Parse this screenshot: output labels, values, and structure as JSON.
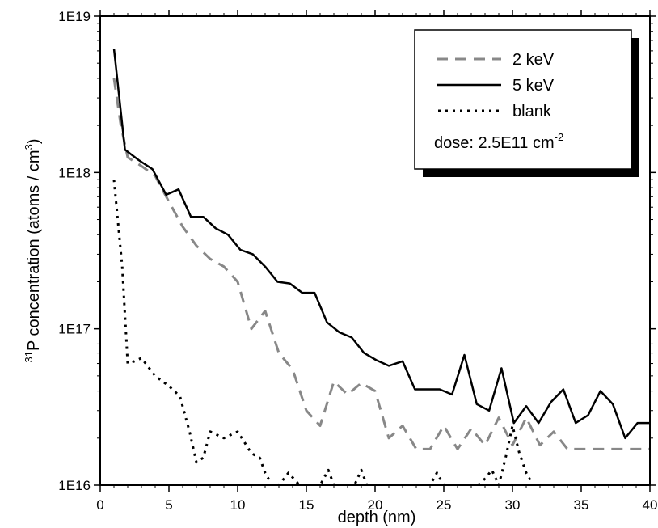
{
  "chart_data": {
    "type": "line",
    "xlabel": "depth (nm)",
    "ylabel": {
      "sup_prefix": "31",
      "main": "P concentration (atoms / cm",
      "sup_unit": "3",
      "close": ")"
    },
    "xlim": [
      0,
      40
    ],
    "ylim": [
      1e+16,
      1e+19
    ],
    "y_scale": "log",
    "x_ticks": [
      0,
      5,
      10,
      15,
      20,
      25,
      30,
      35,
      40
    ],
    "x_tick_labels": [
      "0",
      "5",
      "10",
      "15",
      "20",
      "25",
      "30",
      "35",
      "40"
    ],
    "y_ticks": [
      1e+16,
      1e+17,
      1e+18,
      1e+19
    ],
    "y_tick_labels": [
      "1E16",
      "1E17",
      "1E18",
      "1E19"
    ],
    "legend": {
      "position": "top-right",
      "dose_text": "dose: 2.5E11 cm",
      "dose_sup": "-2"
    },
    "series": [
      {
        "name": "2 keV",
        "style": "dashed",
        "color": "#888888",
        "x": [
          1.0,
          1.5,
          2.0,
          3.0,
          4.0,
          5.0,
          6.0,
          7.0,
          8.0,
          9.0,
          10.0,
          11.0,
          12.0,
          13.0,
          14.0,
          15.0,
          16.0,
          17.0,
          18.0,
          19.0,
          20.0,
          21.0,
          22.0,
          23.0,
          24.0,
          25.0,
          26.0,
          27.0,
          28.0,
          29.0,
          30.0,
          31.0,
          32.0,
          33.0,
          34.0,
          35.0,
          36.0,
          37.0,
          38.0,
          39.0,
          40.0
        ],
        "y": [
          4e+18,
          2e+18,
          1.25e+18,
          1.1e+18,
          9.5e+17,
          6.5e+17,
          4.5e+17,
          3.4e+17,
          2.8e+17,
          2.5e+17,
          2e+17,
          1e+17,
          1.3e+17,
          7e+16,
          5.5e+16,
          3e+16,
          2.4e+16,
          4.6e+16,
          3.8e+16,
          4.5e+16,
          4e+16,
          2e+16,
          2.4e+16,
          1.7e+16,
          1.7e+16,
          2.4e+16,
          1.7e+16,
          2.3e+16,
          1.8e+16,
          2.7e+16,
          1.8e+16,
          2.7e+16,
          1.8e+16,
          2.2e+16,
          1.7e+16,
          1.7e+16,
          1.7e+16,
          1.7e+16,
          1.7e+16,
          1.7e+16,
          1.7e+16
        ]
      },
      {
        "name": "5 keV",
        "style": "solid",
        "color": "#000000",
        "x": [
          1.0,
          1.8,
          2.8,
          3.8,
          4.8,
          5.7,
          6.6,
          7.5,
          8.4,
          9.3,
          10.2,
          11.1,
          12.0,
          12.9,
          13.8,
          14.7,
          15.6,
          16.5,
          17.4,
          18.3,
          19.2,
          20.1,
          21.0,
          22.0,
          22.9,
          23.8,
          24.7,
          25.6,
          26.5,
          27.4,
          28.3,
          29.2,
          30.1,
          31.0,
          31.9,
          32.8,
          33.7,
          34.6,
          35.5,
          36.4,
          37.3,
          38.2,
          39.1,
          40.0
        ],
        "y": [
          6.2e+18,
          1.4e+18,
          1.2e+18,
          1.05e+18,
          7.2e+17,
          7.8e+17,
          5.2e+17,
          5.2e+17,
          4.4e+17,
          4e+17,
          3.2e+17,
          3e+17,
          2.5e+17,
          2e+17,
          1.95e+17,
          1.7e+17,
          1.7e+17,
          1.1e+17,
          9.5e+16,
          8.8e+16,
          7e+16,
          6.3e+16,
          5.8e+16,
          6.2e+16,
          4.1e+16,
          4.1e+16,
          4.1e+16,
          3.8e+16,
          6.8e+16,
          3.3e+16,
          3e+16,
          5.6e+16,
          2.5e+16,
          3.2e+16,
          2.5e+16,
          3.4e+16,
          4.1e+16,
          2.5e+16,
          2.8e+16,
          4e+16,
          3.3e+16,
          2e+16,
          2.5e+16,
          2.5e+16
        ]
      },
      {
        "name": "blank",
        "style": "dotted",
        "color": "#000000",
        "x": [
          1.0,
          1.6,
          2.0,
          2.5,
          3.0,
          4.0,
          5.0,
          5.8,
          6.5,
          7.0,
          7.5,
          8.0,
          8.5,
          9.0,
          10.0,
          11.0,
          11.6,
          12.0,
          12.5,
          13.0,
          13.7,
          14.5,
          15.0,
          15.5,
          16.0,
          16.6,
          17.0,
          17.5,
          18.0,
          18.5,
          19.0,
          19.4,
          19.8,
          20.3,
          21.0,
          22.0,
          23.0,
          24.0,
          24.5,
          25.0,
          25.5,
          26.0,
          27.0,
          27.5,
          28.0,
          28.5,
          29.0,
          29.5,
          30.0,
          30.5,
          31.0,
          31.5,
          32.0,
          33.0,
          34.0,
          35.0,
          36.0,
          37.0,
          38.0,
          39.0,
          40.0
        ],
        "y": [
          9e+17,
          2.5e+17,
          6e+16,
          6.2e+16,
          6.5e+16,
          5e+16,
          4.3e+16,
          3.7e+16,
          2.2e+16,
          1.4e+16,
          1.5e+16,
          2.2e+16,
          2.1e+16,
          2e+16,
          2.2e+16,
          1.6e+16,
          1.5e+16,
          1.2e+16,
          1e+16,
          1e+16,
          1.2e+16,
          1e+16,
          8000000000000000.0,
          9000000000000000.0,
          1e+16,
          1.25e+16,
          1e+16,
          1e+16,
          8000000000000000.0,
          1e+16,
          1.25e+16,
          1e+16,
          8000000000000000.0,
          8000000000000000.0,
          8000000000000000.0,
          8000000000000000.0,
          8000000000000000.0,
          1e+16,
          1.2e+16,
          1e+16,
          8000000000000000.0,
          8000000000000000.0,
          9000000000000000.0,
          1e+16,
          1.1e+16,
          1.25e+16,
          1e+16,
          1.5e+16,
          2.4e+16,
          1.6e+16,
          1.2e+16,
          1e+16,
          8000000000000000.0,
          8000000000000000.0,
          8000000000000000.0,
          8000000000000000.0,
          8000000000000000.0,
          8000000000000000.0,
          8000000000000000.0,
          8000000000000000.0,
          8000000000000000.0
        ]
      }
    ]
  }
}
